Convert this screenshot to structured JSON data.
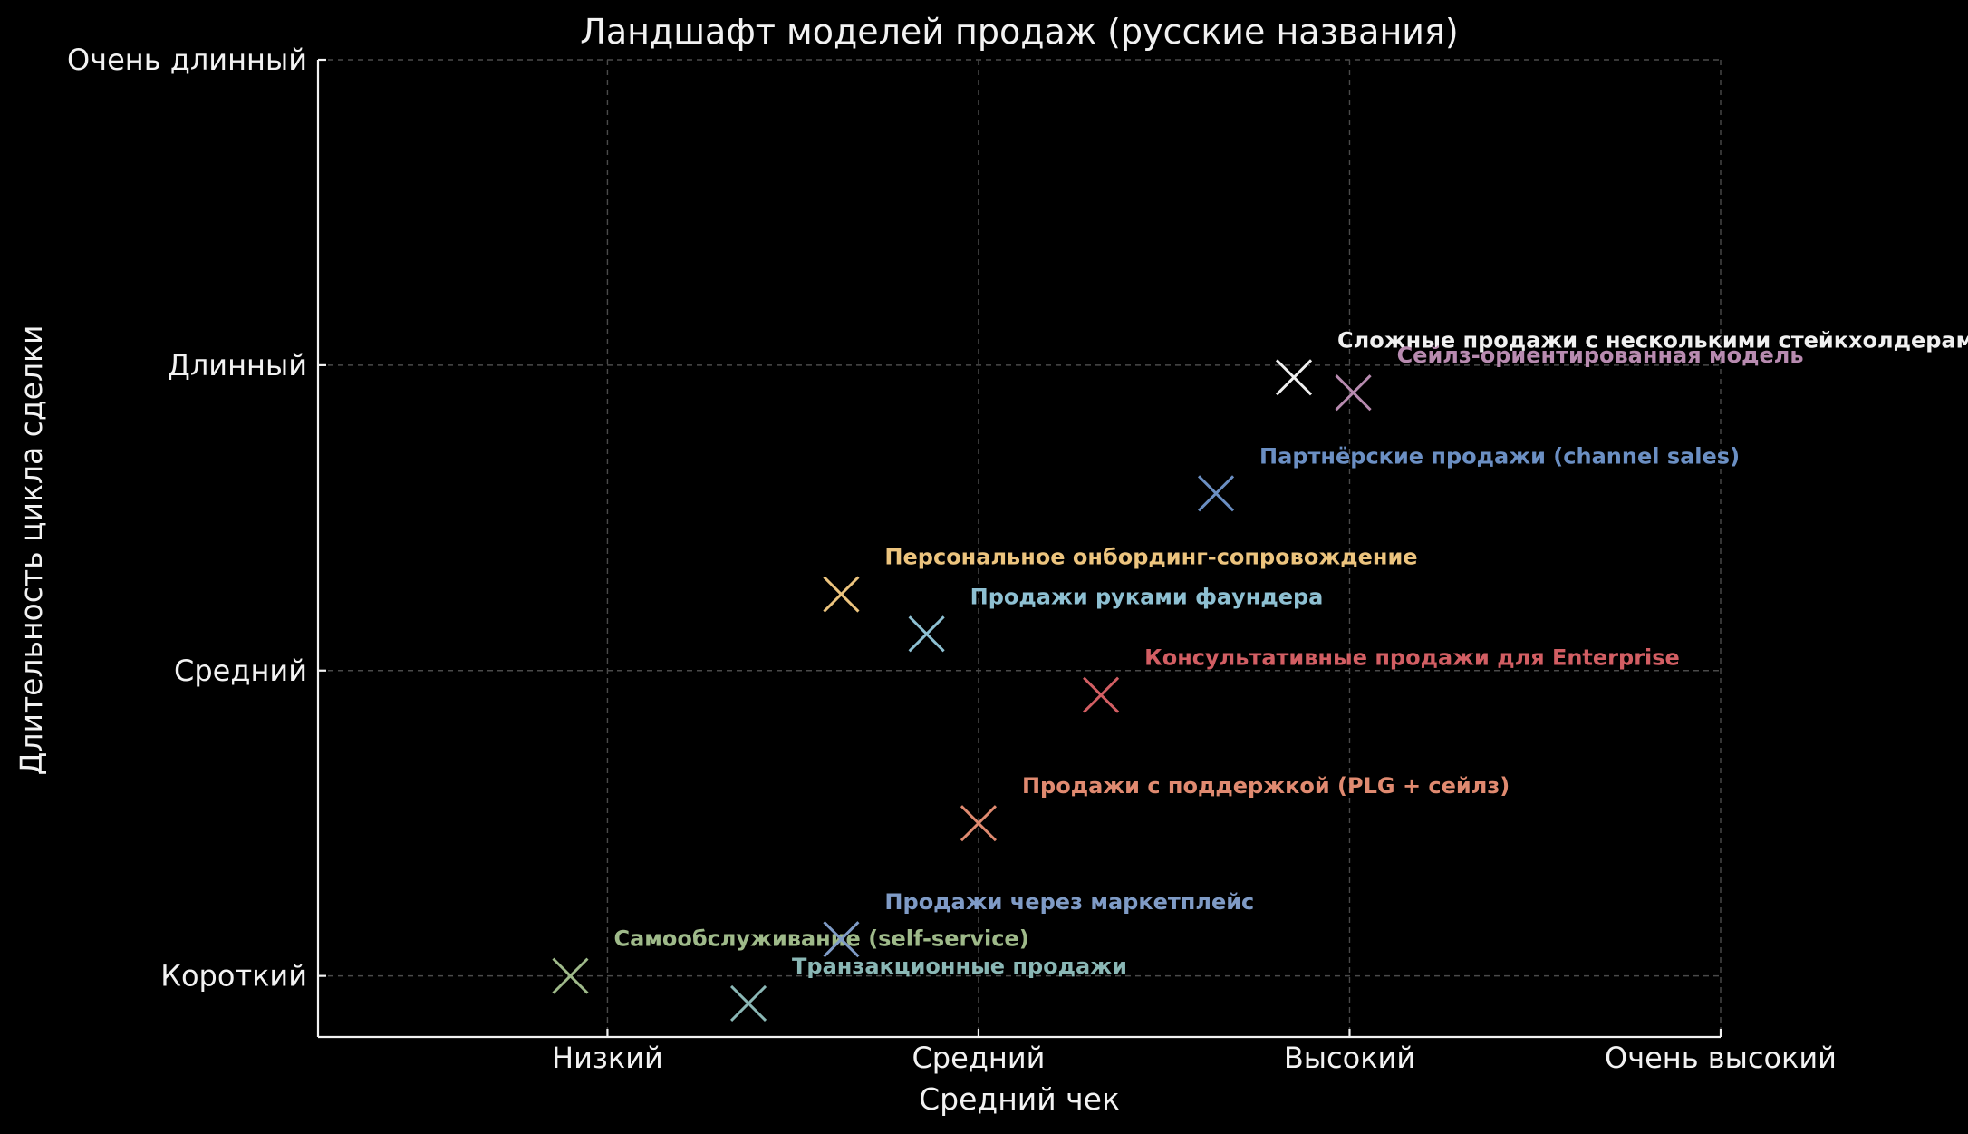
{
  "chart_data": {
    "type": "scatter",
    "title": "Ландшафт моделей продаж (русские названия)",
    "xlabel": "Средний чек",
    "ylabel": "Длительность цикла сделки",
    "x_ticks": [
      {
        "value": 1,
        "label": "Низкий"
      },
      {
        "value": 2,
        "label": "Средний"
      },
      {
        "value": 3,
        "label": "Высокий"
      },
      {
        "value": 4,
        "label": "Очень высокий"
      }
    ],
    "y_ticks": [
      {
        "value": 1,
        "label": "Короткий"
      },
      {
        "value": 2,
        "label": "Средний"
      },
      {
        "value": 3,
        "label": "Длинный"
      },
      {
        "value": 4,
        "label": "Очень длинный"
      }
    ],
    "xlim": [
      0.22,
      4.0
    ],
    "ylim": [
      0.8,
      4.0
    ],
    "grid": true,
    "marker": "x",
    "points": [
      {
        "label": "Самообслуживание (self-service)",
        "x": 0.9,
        "y": 1.0,
        "color": "#9fba8a"
      },
      {
        "label": "Транзакционные продажи",
        "x": 1.38,
        "y": 0.91,
        "color": "#8ab7b5"
      },
      {
        "label": "Продажи через маркетплейс",
        "x": 1.63,
        "y": 1.12,
        "color": "#7f9bc6"
      },
      {
        "label": "Продажи с поддержкой (PLG + сейлз)",
        "x": 2.0,
        "y": 1.5,
        "color": "#e08a70"
      },
      {
        "label": "Персональное онбординг-сопровождение",
        "x": 1.63,
        "y": 2.25,
        "color": "#ecc47e"
      },
      {
        "label": "Продажи руками фаундера",
        "x": 1.86,
        "y": 2.12,
        "color": "#8ec0d2"
      },
      {
        "label": "Консультативные продажи для Enterprise",
        "x": 2.33,
        "y": 1.92,
        "color": "#d25e63"
      },
      {
        "label": "Партнёрские продажи (channel sales)",
        "x": 2.64,
        "y": 2.58,
        "color": "#6b8fc3"
      },
      {
        "label": "Сложные продажи с несколькими стейкхолдерами",
        "x": 2.85,
        "y": 2.96,
        "color": "#f0f0f0"
      },
      {
        "label": "Сейлз-ориентированная модель",
        "x": 3.01,
        "y": 2.91,
        "color": "#b88bb0"
      }
    ]
  }
}
